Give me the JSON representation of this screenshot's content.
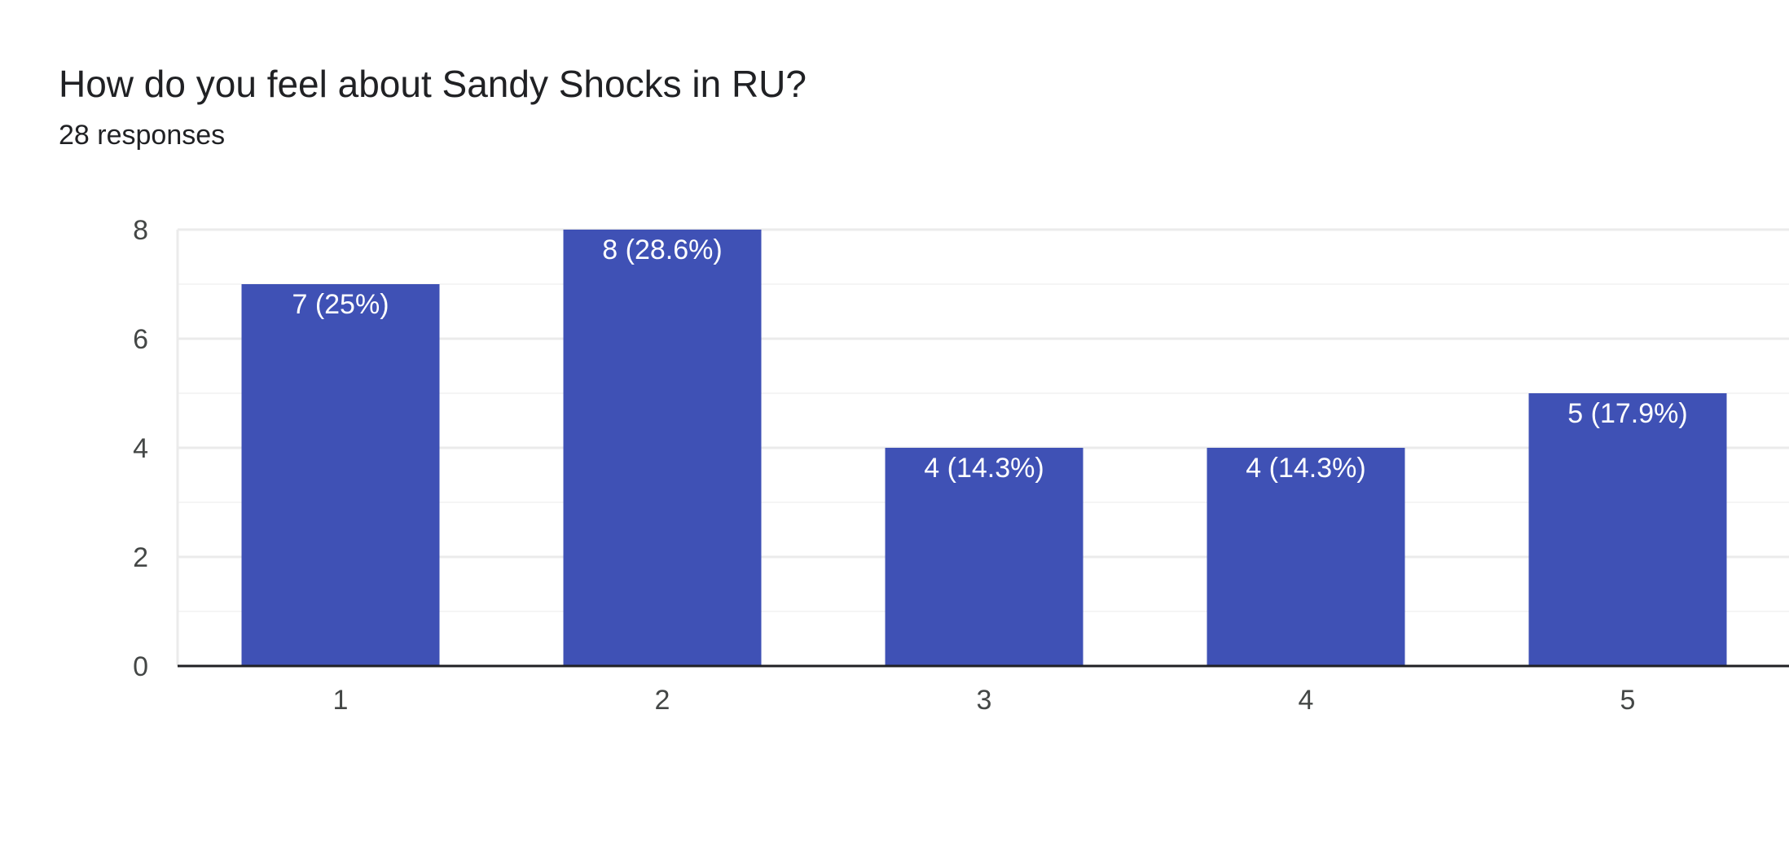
{
  "header": {
    "title": "How do you feel about Sandy Shocks in RU?",
    "responses": "28 responses"
  },
  "colors": {
    "bar": "#3f51b5",
    "grid_major": "#ebebeb",
    "grid_minor": "#f5f5f5",
    "axis": "#202124"
  },
  "chart_data": {
    "type": "bar",
    "categories": [
      "1",
      "2",
      "3",
      "4",
      "5"
    ],
    "values": [
      7,
      8,
      4,
      4,
      5
    ],
    "data_labels": [
      "7 (25%)",
      "8 (28.6%)",
      "4 (14.3%)",
      "4 (14.3%)",
      "5 (17.9%)"
    ],
    "ylim": [
      0,
      8
    ],
    "yticks": [
      0,
      2,
      4,
      6,
      8
    ],
    "grid": true,
    "legend": "none",
    "xlabel": "",
    "ylabel": ""
  }
}
